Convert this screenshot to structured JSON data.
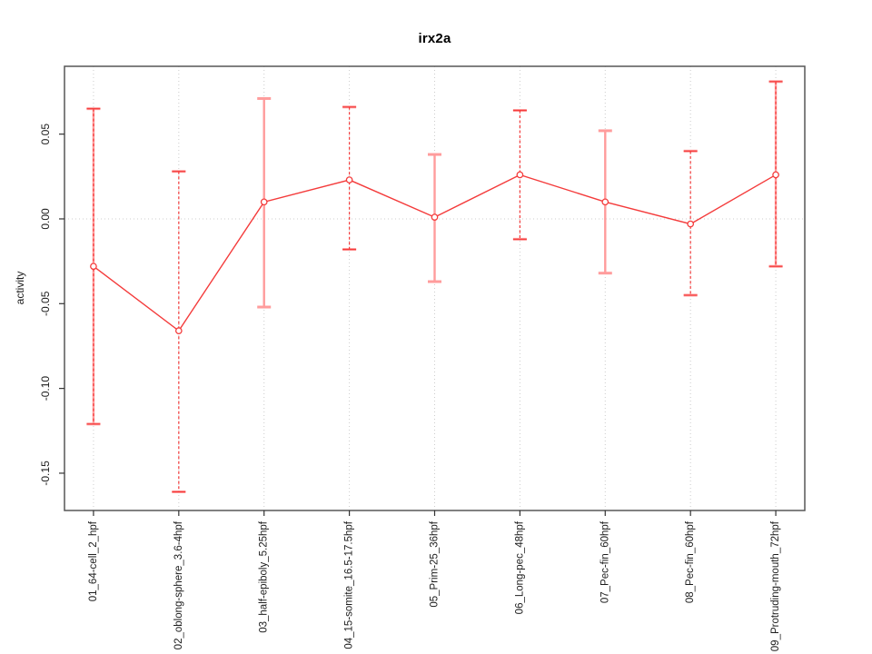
{
  "chart_data": {
    "type": "line",
    "subtype": "points-with-error-bars",
    "title": "irx2a",
    "xlabel": "",
    "ylabel": "activity",
    "categories": [
      "01_64-cell_2_hpf",
      "02_oblong-sphere_3.6-4hpf",
      "03_half-epiboly_5.25hpf",
      "04_15-somite_16.5-17.5hpf",
      "05_Prim-25_36hpf",
      "06_Long-pec_48hpf",
      "07_Pec-fin_60hpf",
      "08_Pec-fin_60hpf",
      "09_Protruding-mouth_72hpf"
    ],
    "values": [
      -0.028,
      -0.066,
      0.01,
      0.023,
      0.001,
      0.026,
      0.01,
      -0.003,
      0.026
    ],
    "error_upper": [
      0.065,
      0.028,
      0.071,
      0.066,
      0.038,
      0.064,
      0.052,
      0.04,
      0.081
    ],
    "error_lower": [
      -0.121,
      -0.161,
      -0.052,
      -0.018,
      -0.037,
      -0.012,
      -0.032,
      -0.045,
      -0.028
    ],
    "error_bar_styles": [
      "both",
      "dashed",
      "solid",
      "dashed",
      "solid",
      "dashed",
      "solid",
      "dashed",
      "both"
    ],
    "yticks": [
      {
        "value": 0.05,
        "label": "0.05"
      },
      {
        "value": 0.0,
        "label": "0.00"
      },
      {
        "value": -0.05,
        "label": "-0.05"
      },
      {
        "value": -0.1,
        "label": "-0.10"
      },
      {
        "value": -0.15,
        "label": "-0.15"
      }
    ],
    "ylim": [
      -0.172,
      0.09
    ],
    "marker": "open-circle",
    "legend": "none",
    "grid": {
      "vertical_at_categories": true,
      "horizontal_at_zero": true,
      "style": "dotted"
    },
    "colors": {
      "series_red": "#f43b3b",
      "error_light": "#ff9c9c",
      "grid": "#cccccc",
      "border": "#575757",
      "tick": "#333333",
      "text": "#1c1c1c"
    }
  }
}
